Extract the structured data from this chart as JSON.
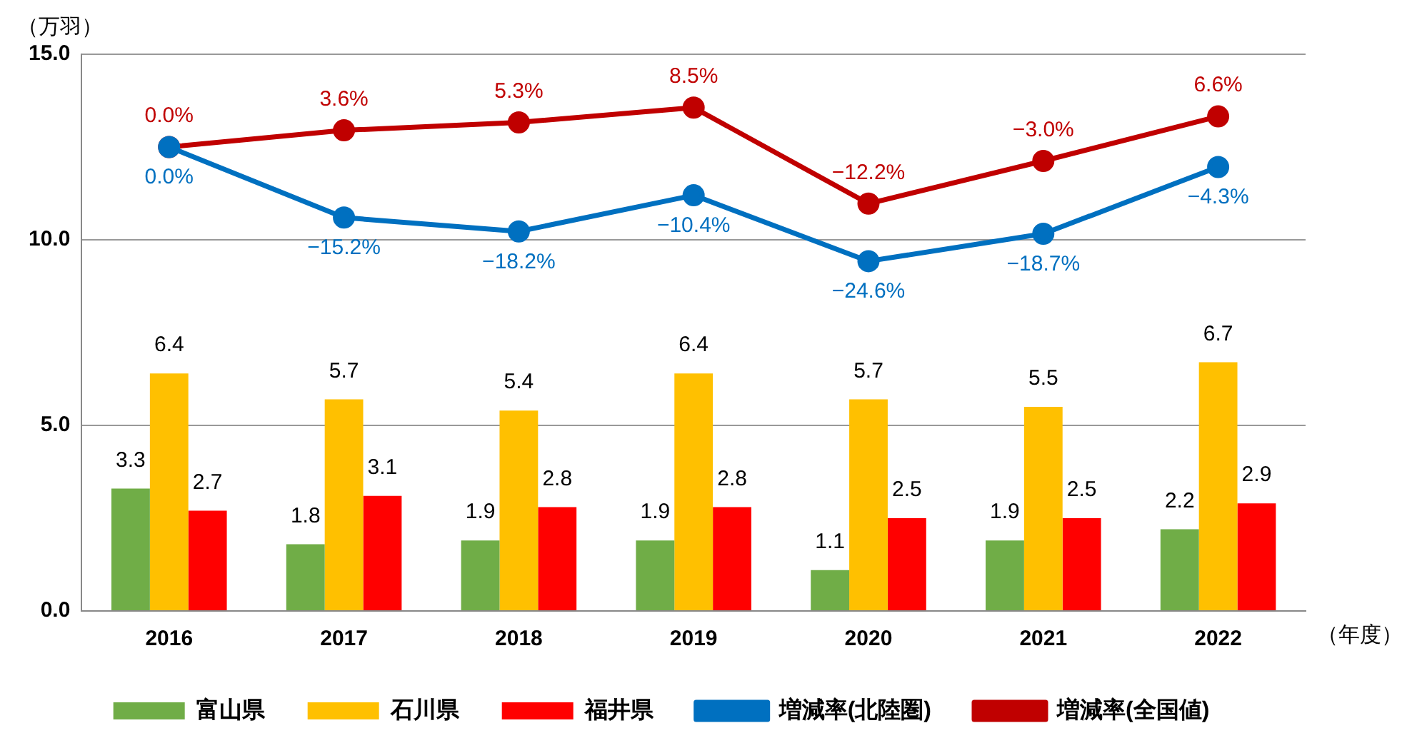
{
  "chart_data": {
    "type": "bar",
    "ylabel": "（万羽）",
    "xlabel": "（年度）",
    "categories": [
      "2016",
      "2017",
      "2018",
      "2019",
      "2020",
      "2021",
      "2022"
    ],
    "series": [
      {
        "name": "富山県",
        "color": "#70ad47",
        "values": [
          3.3,
          1.8,
          1.9,
          1.9,
          1.1,
          1.9,
          2.2
        ],
        "value_labels": [
          "3.3",
          "1.8",
          "1.9",
          "1.9",
          "1.1",
          "1.9",
          "2.2"
        ]
      },
      {
        "name": "石川県",
        "color": "#ffc000",
        "values": [
          6.4,
          5.7,
          5.4,
          6.4,
          5.7,
          5.5,
          6.7
        ],
        "value_labels": [
          "6.4",
          "5.7",
          "5.4",
          "6.4",
          "5.7",
          "5.5",
          "6.7"
        ]
      },
      {
        "name": "福井県",
        "color": "#ff0000",
        "values": [
          2.7,
          3.1,
          2.8,
          2.8,
          2.5,
          2.5,
          2.9
        ],
        "value_labels": [
          "2.7",
          "3.1",
          "2.8",
          "2.8",
          "2.5",
          "2.5",
          "2.9"
        ]
      },
      {
        "name": "増減率(北陸圏)",
        "type": "line",
        "axis": "y2",
        "color": "#0070c0",
        "values": [
          0.0,
          -15.2,
          -18.2,
          -10.4,
          -24.6,
          -18.7,
          -4.3
        ],
        "value_labels": [
          "0.0%",
          "−15.2%",
          "−18.2%",
          "−10.4%",
          "−24.6%",
          "−18.7%",
          "−4.3%"
        ]
      },
      {
        "name": "増減率(全国値)",
        "type": "line",
        "axis": "y2",
        "color": "#c00000",
        "values": [
          0.0,
          3.6,
          5.3,
          8.5,
          -12.2,
          -3.0,
          6.6
        ],
        "value_labels": [
          "0.0%",
          "3.6%",
          "5.3%",
          "8.5%",
          "−12.2%",
          "−3.0%",
          "6.6%"
        ]
      }
    ],
    "ylim": [
      0,
      15
    ],
    "yticks": [
      {
        "value": 0,
        "label": "0.0"
      },
      {
        "value": 5,
        "label": "5.0"
      },
      {
        "value": 10,
        "label": "10.0"
      },
      {
        "value": 15,
        "label": "15.0"
      }
    ],
    "y2lim": [
      -100,
      20
    ],
    "grid": "y",
    "legend": "bottom",
    "marker": "circle",
    "line_style": "solid"
  }
}
